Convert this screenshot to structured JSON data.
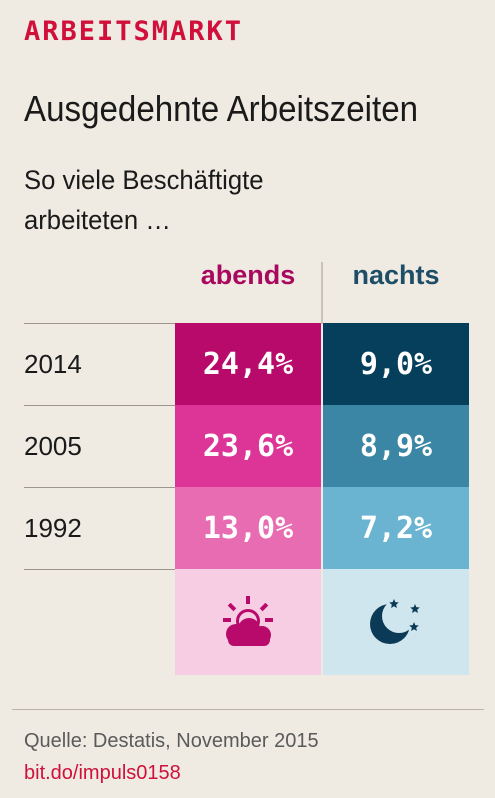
{
  "header": {
    "kicker": "ARBEITSMARKT",
    "title": "Ausgedehnte Arbeitszeiten",
    "subtitle": "So viele Beschäftigte arbeiteten …"
  },
  "chart_data": {
    "type": "table",
    "columns": [
      "abends",
      "nachts"
    ],
    "rows": [
      {
        "year": "2014",
        "abends": "24,4%",
        "nachts": "9,0%"
      },
      {
        "year": "2005",
        "abends": "23,6%",
        "nachts": "8,9%"
      },
      {
        "year": "1992",
        "abends": "13,0%",
        "nachts": "7,2%"
      }
    ],
    "values": {
      "abends": [
        24.4,
        23.6,
        13.0
      ],
      "nachts": [
        9.0,
        8.9,
        7.2
      ]
    },
    "icons": {
      "abends": "sun-behind-cloud-icon",
      "nachts": "moon-stars-icon"
    }
  },
  "colors": {
    "kicker": "#d0103a",
    "abends_header": "#a8095f",
    "nachts_header": "#1e4d67",
    "abends_cells": [
      "#b80a6b",
      "#dd3597",
      "#e86cb2"
    ],
    "nachts_cells": [
      "#063f5c",
      "#3b86a4",
      "#6ab3d1"
    ],
    "abends_icon_bg": "#f6cde3",
    "nachts_icon_bg": "#cfe6ef",
    "abends_icon": "#b80a6b",
    "nachts_icon": "#0b3a56"
  },
  "footer": {
    "source": "Quelle: Destatis, November 2015",
    "link": "bit.do/impuls0158"
  }
}
